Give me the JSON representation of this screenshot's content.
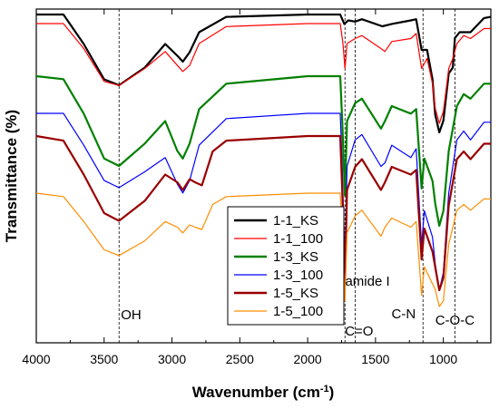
{
  "chart_data": {
    "type": "line",
    "title": "",
    "xlabel": "Wavenumber (cm",
    "xlabel_sup": "-1",
    "xlabel_close": ")",
    "ylabel": "Transmittance (%)",
    "xlim": [
      4000,
      650
    ],
    "x_reversed": true,
    "y_ticks_shown": false,
    "x_ticks": [
      4000,
      3500,
      3000,
      2500,
      2000,
      1500,
      1000
    ],
    "x_tick_labels": [
      "4000",
      "3500",
      "3000",
      "2500",
      "2000",
      "1500",
      "1000"
    ],
    "grid": false,
    "legend_position": "lower-center",
    "reference_lines": [
      3390,
      1725,
      1650,
      1150,
      915
    ],
    "annotations": [
      {
        "text": "OH",
        "x": 3390
      },
      {
        "text": "C=O",
        "x": 1725
      },
      {
        "text": "amide I",
        "x": 1650
      },
      {
        "text": "C-N",
        "x": 1150
      },
      {
        "text": "C-O-C",
        "x": 915
      }
    ],
    "series": [
      {
        "name": "1-1_KS",
        "color": "#000000",
        "shape": [
          [
            4000,
            0
          ],
          [
            3800,
            0
          ],
          [
            3650,
            0.25
          ],
          [
            3500,
            0.55
          ],
          [
            3390,
            0.6
          ],
          [
            3200,
            0.45
          ],
          [
            3050,
            0.25
          ],
          [
            2960,
            0.35
          ],
          [
            2920,
            0.4
          ],
          [
            2870,
            0.32
          ],
          [
            2800,
            0.15
          ],
          [
            2600,
            0.02
          ],
          [
            2000,
            0
          ],
          [
            1760,
            0
          ],
          [
            1730,
            0.08
          ],
          [
            1700,
            0.05
          ],
          [
            1650,
            0.06
          ],
          [
            1600,
            0.04
          ],
          [
            1450,
            0.1
          ],
          [
            1380,
            0.08
          ],
          [
            1240,
            0.05
          ],
          [
            1200,
            0.04
          ],
          [
            1160,
            0.3
          ],
          [
            1120,
            0.3
          ],
          [
            1080,
            0.55
          ],
          [
            1060,
            0.85
          ],
          [
            1030,
            1.0
          ],
          [
            1000,
            0.9
          ],
          [
            960,
            0.5
          ],
          [
            930,
            0.45
          ],
          [
            915,
            0.2
          ],
          [
            880,
            0.15
          ],
          [
            800,
            0.15
          ],
          [
            700,
            0.03
          ],
          [
            650,
            0.02
          ]
        ]
      },
      {
        "name": "1-1_100",
        "color": "#ff0000",
        "shape": [
          [
            4000,
            0
          ],
          [
            3800,
            0
          ],
          [
            3650,
            0.25
          ],
          [
            3500,
            0.58
          ],
          [
            3390,
            0.62
          ],
          [
            3200,
            0.45
          ],
          [
            3050,
            0.28
          ],
          [
            2960,
            0.42
          ],
          [
            2920,
            0.48
          ],
          [
            2870,
            0.42
          ],
          [
            2800,
            0.2
          ],
          [
            2600,
            0.03
          ],
          [
            2000,
            0
          ],
          [
            1760,
            0
          ],
          [
            1740,
            0.2
          ],
          [
            1725,
            0.45
          ],
          [
            1710,
            0.2
          ],
          [
            1650,
            0.15
          ],
          [
            1600,
            0.12
          ],
          [
            1460,
            0.25
          ],
          [
            1430,
            0.28
          ],
          [
            1380,
            0.18
          ],
          [
            1240,
            0.15
          ],
          [
            1200,
            0.1
          ],
          [
            1160,
            0.45
          ],
          [
            1120,
            0.35
          ],
          [
            1080,
            0.6
          ],
          [
            1060,
            0.85
          ],
          [
            1030,
            1.0
          ],
          [
            1000,
            0.88
          ],
          [
            960,
            0.45
          ],
          [
            930,
            0.35
          ],
          [
            900,
            0.2
          ],
          [
            850,
            0.12
          ],
          [
            800,
            0.15
          ],
          [
            700,
            0.05
          ],
          [
            650,
            0.05
          ]
        ]
      },
      {
        "name": "1-3_KS",
        "color": "#008000",
        "shape": [
          [
            4000,
            0
          ],
          [
            3800,
            0.02
          ],
          [
            3650,
            0.25
          ],
          [
            3500,
            0.55
          ],
          [
            3390,
            0.6
          ],
          [
            3200,
            0.45
          ],
          [
            3050,
            0.3
          ],
          [
            2960,
            0.5
          ],
          [
            2920,
            0.55
          ],
          [
            2870,
            0.45
          ],
          [
            2800,
            0.22
          ],
          [
            2600,
            0.05
          ],
          [
            2000,
            0
          ],
          [
            1760,
            0
          ],
          [
            1745,
            0.3
          ],
          [
            1725,
            0.8
          ],
          [
            1710,
            0.3
          ],
          [
            1650,
            0.18
          ],
          [
            1600,
            0.15
          ],
          [
            1460,
            0.35
          ],
          [
            1430,
            0.3
          ],
          [
            1380,
            0.2
          ],
          [
            1240,
            0.25
          ],
          [
            1200,
            0.22
          ],
          [
            1160,
            0.75
          ],
          [
            1140,
            0.55
          ],
          [
            1080,
            0.7
          ],
          [
            1060,
            0.85
          ],
          [
            1030,
            1.0
          ],
          [
            1000,
            0.9
          ],
          [
            960,
            0.5
          ],
          [
            930,
            0.35
          ],
          [
            900,
            0.2
          ],
          [
            850,
            0.12
          ],
          [
            800,
            0.15
          ],
          [
            700,
            0.05
          ],
          [
            650,
            0.05
          ]
        ]
      },
      {
        "name": "1-3_100",
        "color": "#0000ff",
        "shape": [
          [
            4000,
            0
          ],
          [
            3800,
            0
          ],
          [
            3650,
            0.18
          ],
          [
            3500,
            0.38
          ],
          [
            3390,
            0.42
          ],
          [
            3200,
            0.33
          ],
          [
            3050,
            0.25
          ],
          [
            2960,
            0.4
          ],
          [
            2920,
            0.45
          ],
          [
            2870,
            0.38
          ],
          [
            2800,
            0.18
          ],
          [
            2600,
            0.03
          ],
          [
            2000,
            0
          ],
          [
            1760,
            0
          ],
          [
            1745,
            0.3
          ],
          [
            1725,
            0.85
          ],
          [
            1710,
            0.3
          ],
          [
            1650,
            0.15
          ],
          [
            1600,
            0.12
          ],
          [
            1460,
            0.3
          ],
          [
            1430,
            0.28
          ],
          [
            1380,
            0.18
          ],
          [
            1240,
            0.25
          ],
          [
            1200,
            0.2
          ],
          [
            1160,
            0.75
          ],
          [
            1140,
            0.55
          ],
          [
            1080,
            0.7
          ],
          [
            1060,
            0.85
          ],
          [
            1030,
            1.0
          ],
          [
            1000,
            0.9
          ],
          [
            960,
            0.45
          ],
          [
            930,
            0.3
          ],
          [
            900,
            0.15
          ],
          [
            850,
            0.1
          ],
          [
            800,
            0.15
          ],
          [
            700,
            0.05
          ],
          [
            650,
            0.05
          ]
        ]
      },
      {
        "name": "1-5_KS",
        "color": "#990000",
        "shape": [
          [
            4000,
            0
          ],
          [
            3800,
            0.03
          ],
          [
            3650,
            0.25
          ],
          [
            3500,
            0.5
          ],
          [
            3390,
            0.55
          ],
          [
            3200,
            0.42
          ],
          [
            3050,
            0.25
          ],
          [
            2960,
            0.3
          ],
          [
            2920,
            0.35
          ],
          [
            2870,
            0.28
          ],
          [
            2830,
            0.3
          ],
          [
            2780,
            0.32
          ],
          [
            2700,
            0.1
          ],
          [
            2600,
            0.03
          ],
          [
            2000,
            0
          ],
          [
            1760,
            0
          ],
          [
            1745,
            0.35
          ],
          [
            1725,
            0.95
          ],
          [
            1710,
            0.35
          ],
          [
            1650,
            0.2
          ],
          [
            1600,
            0.15
          ],
          [
            1460,
            0.35
          ],
          [
            1430,
            0.3
          ],
          [
            1380,
            0.2
          ],
          [
            1240,
            0.25
          ],
          [
            1200,
            0.22
          ],
          [
            1160,
            0.8
          ],
          [
            1140,
            0.6
          ],
          [
            1080,
            0.75
          ],
          [
            1060,
            0.85
          ],
          [
            1030,
            1.0
          ],
          [
            1000,
            0.92
          ],
          [
            960,
            0.45
          ],
          [
            930,
            0.3
          ],
          [
            900,
            0.15
          ],
          [
            850,
            0.1
          ],
          [
            800,
            0.15
          ],
          [
            700,
            0.05
          ],
          [
            650,
            0.05
          ]
        ]
      },
      {
        "name": "1-5_100",
        "color": "#ff8c00",
        "shape": [
          [
            4000,
            0
          ],
          [
            3800,
            0.03
          ],
          [
            3650,
            0.25
          ],
          [
            3500,
            0.5
          ],
          [
            3390,
            0.55
          ],
          [
            3200,
            0.42
          ],
          [
            3050,
            0.25
          ],
          [
            2960,
            0.3
          ],
          [
            2920,
            0.35
          ],
          [
            2870,
            0.28
          ],
          [
            2830,
            0.3
          ],
          [
            2780,
            0.32
          ],
          [
            2700,
            0.1
          ],
          [
            2600,
            0.03
          ],
          [
            2000,
            0
          ],
          [
            1760,
            0
          ],
          [
            1745,
            0.35
          ],
          [
            1725,
            0.95
          ],
          [
            1710,
            0.35
          ],
          [
            1650,
            0.2
          ],
          [
            1600,
            0.15
          ],
          [
            1460,
            0.38
          ],
          [
            1430,
            0.3
          ],
          [
            1380,
            0.22
          ],
          [
            1240,
            0.3
          ],
          [
            1200,
            0.25
          ],
          [
            1160,
            0.9
          ],
          [
            1140,
            0.65
          ],
          [
            1080,
            0.8
          ],
          [
            1060,
            0.85
          ],
          [
            1030,
            1.0
          ],
          [
            1000,
            0.95
          ],
          [
            960,
            0.45
          ],
          [
            930,
            0.3
          ],
          [
            900,
            0.15
          ],
          [
            850,
            0.1
          ],
          [
            800,
            0.15
          ],
          [
            700,
            0.05
          ],
          [
            650,
            0.05
          ]
        ]
      }
    ]
  }
}
